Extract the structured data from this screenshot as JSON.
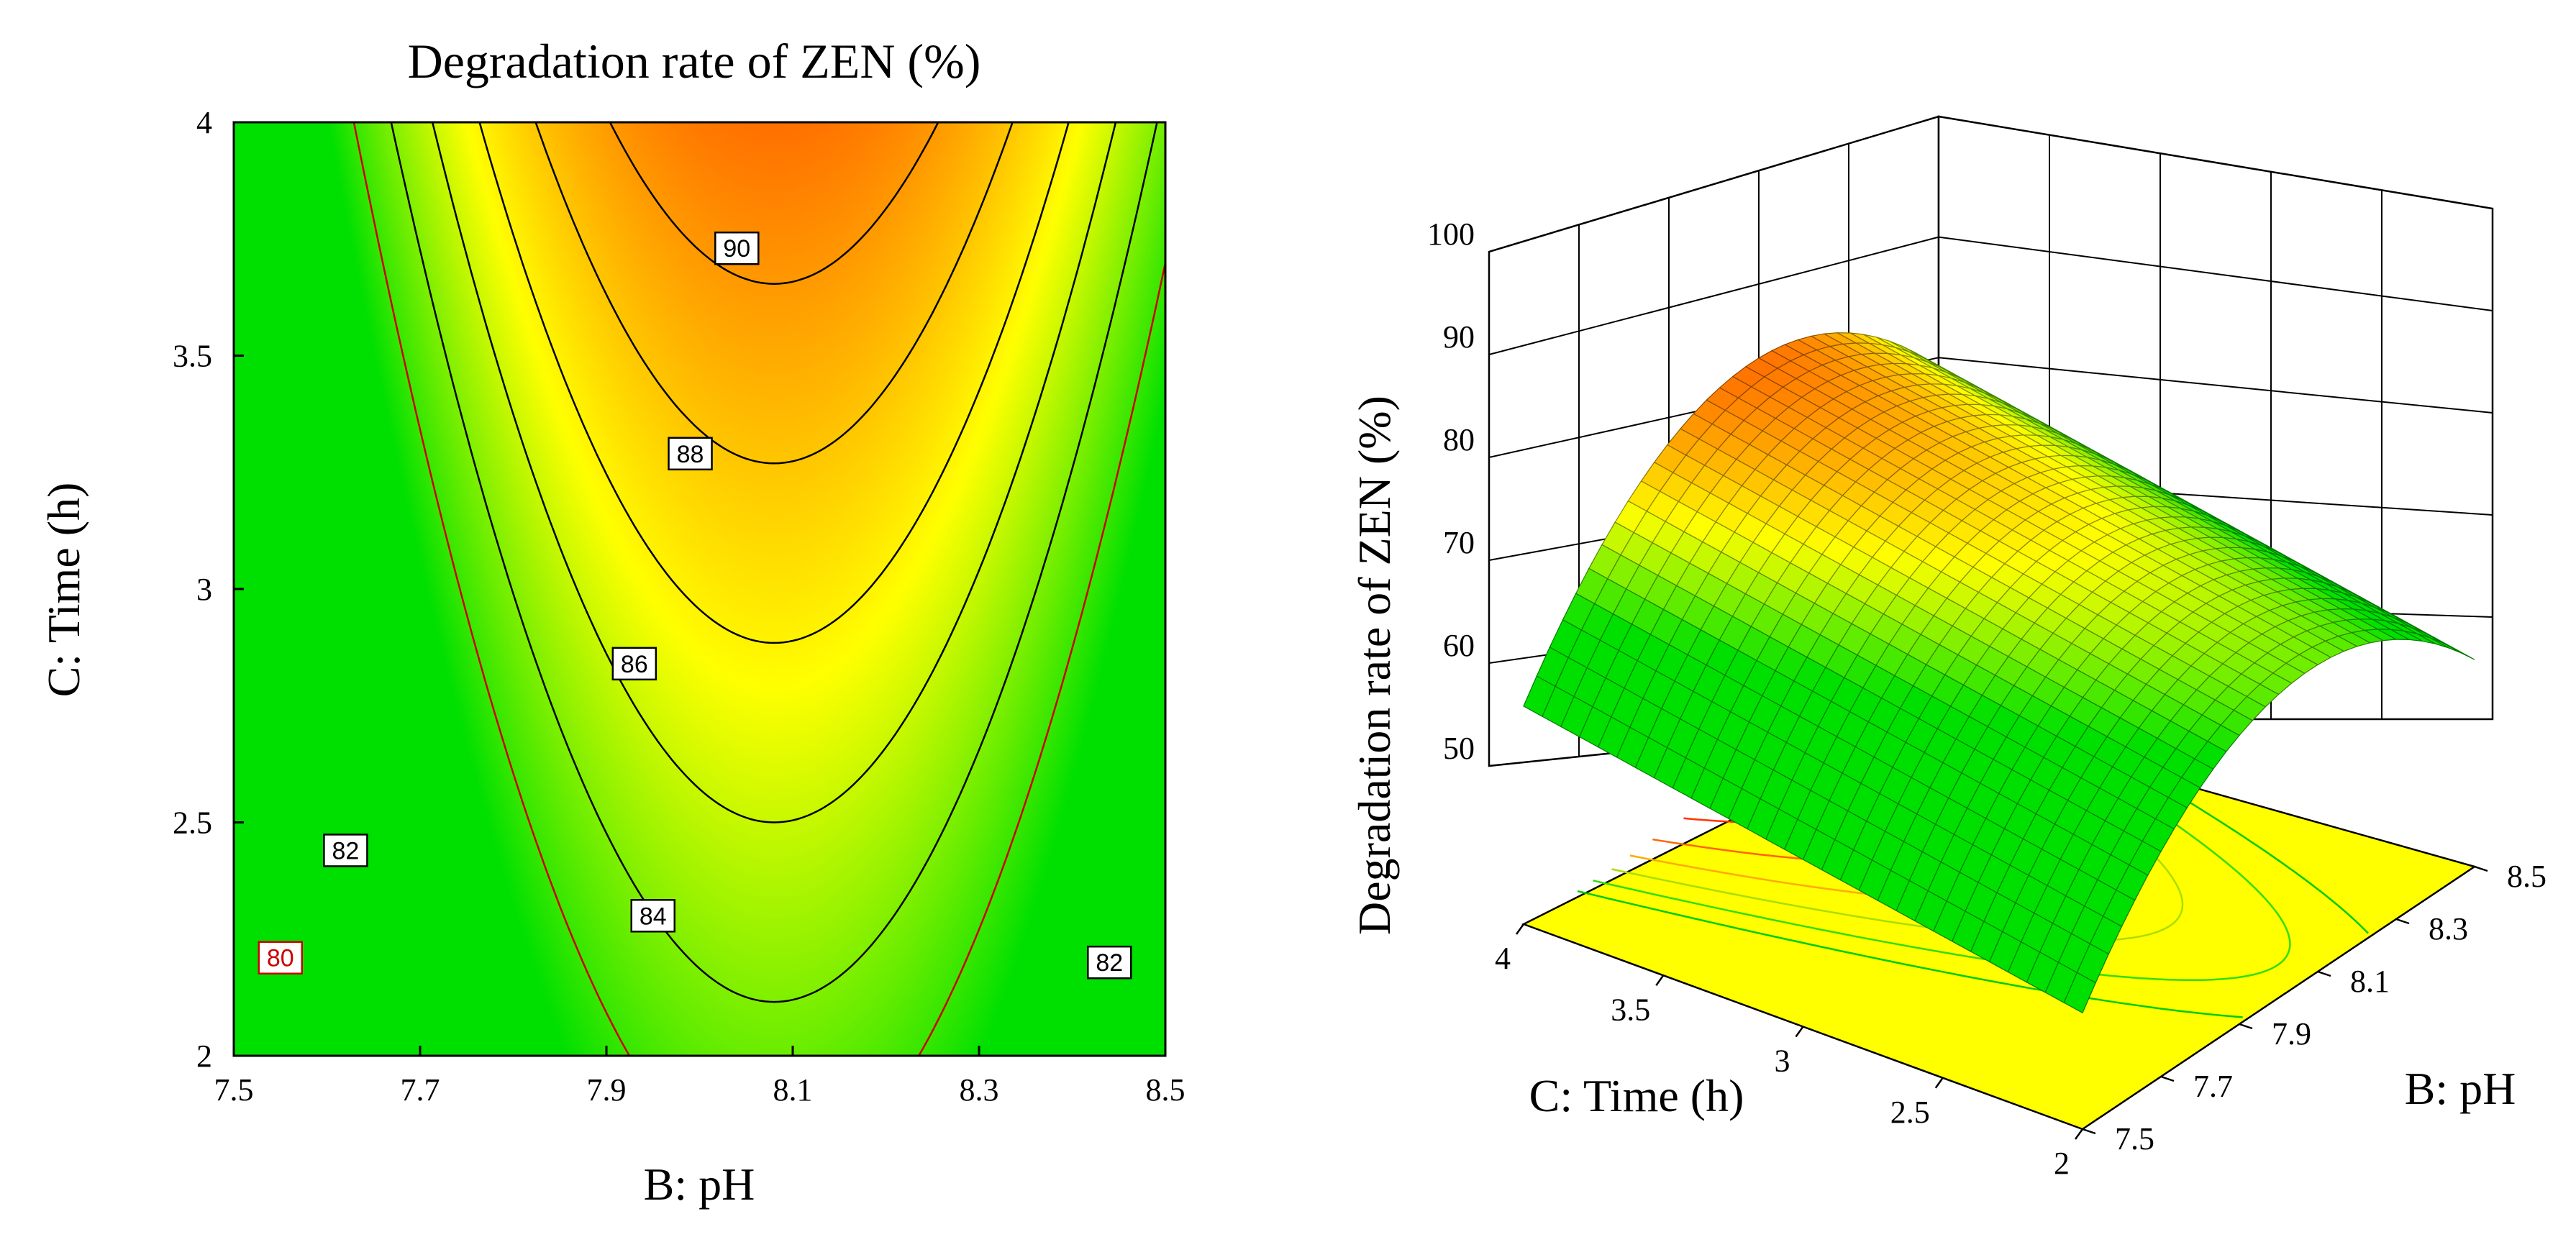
{
  "chart_data": [
    {
      "type": "heatmap",
      "subtype": "contour",
      "title": "Degradation rate of ZEN (%)",
      "xlabel": "B: pH",
      "ylabel": "C: Time (h)",
      "xlim": [
        7.5,
        8.5
      ],
      "ylim": [
        2,
        4
      ],
      "xticks": [
        "7.5",
        "7.7",
        "7.9",
        "8.1",
        "8.3",
        "8.5"
      ],
      "yticks": [
        "2",
        "2.5",
        "3",
        "3.5",
        "4"
      ],
      "contour_levels": [
        80,
        82,
        84,
        86,
        88,
        90
      ],
      "contour_labels": [
        {
          "text": "90",
          "x": 8.04,
          "y": 3.73,
          "color": "#000000"
        },
        {
          "text": "88",
          "x": 7.99,
          "y": 3.29,
          "color": "#000000"
        },
        {
          "text": "86",
          "x": 7.93,
          "y": 2.84,
          "color": "#000000"
        },
        {
          "text": "84",
          "x": 7.95,
          "y": 2.3,
          "color": "#000000"
        },
        {
          "text": "82",
          "x": 7.62,
          "y": 2.44,
          "color": "#000000"
        },
        {
          "text": "82",
          "x": 8.44,
          "y": 2.2,
          "color": "#000000"
        },
        {
          "text": "80",
          "x": 7.55,
          "y": 2.21,
          "color": "#cc0000"
        }
      ],
      "colormap": [
        "#00e000",
        "#ffff00",
        "#ff6000"
      ]
    },
    {
      "type": "surface3d",
      "zlabel": "Degradation rate of ZEN (%)",
      "xlabel": "B: pH",
      "ylabel": "C: Time (h)",
      "zlim": [
        50,
        100
      ],
      "zticks": [
        "50",
        "60",
        "70",
        "80",
        "90",
        "100"
      ],
      "xticks": [
        "7.5",
        "7.7",
        "7.9",
        "8.1",
        "8.3",
        "8.5"
      ],
      "yticks": [
        "2",
        "2.5",
        "3",
        "3.5",
        "4"
      ],
      "xlim": [
        7.5,
        8.5
      ],
      "ylim": [
        2,
        4
      ]
    }
  ]
}
